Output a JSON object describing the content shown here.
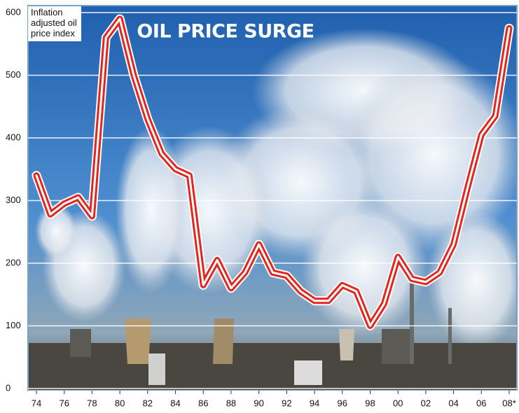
{
  "chart_data": {
    "type": "line",
    "title": "OIL PRICE SURGE",
    "y_label": "Inflation adjusted oil price index",
    "categories": [
      "74",
      null,
      "76",
      null,
      "78",
      null,
      "80",
      null,
      "82",
      null,
      "84",
      null,
      "86",
      null,
      "88",
      null,
      "90",
      null,
      "92",
      null,
      "94",
      null,
      "96",
      null,
      "98",
      null,
      "00",
      null,
      "02",
      null,
      "04",
      null,
      "06",
      null,
      "08*"
    ],
    "series": [
      {
        "name": "Inflation adjusted oil price index",
        "color": "#e0261f",
        "values": [
          340,
          278,
          295,
          305,
          275,
          560,
          590,
          500,
          430,
          375,
          350,
          340,
          165,
          205,
          160,
          185,
          230,
          185,
          180,
          155,
          140,
          140,
          165,
          155,
          100,
          135,
          210,
          175,
          170,
          185,
          230,
          320,
          405,
          435,
          575
        ]
      }
    ],
    "ylim": [
      0,
      600
    ],
    "yticks": [
      0,
      100,
      200,
      300,
      400,
      500,
      600
    ],
    "grid": true
  }
}
